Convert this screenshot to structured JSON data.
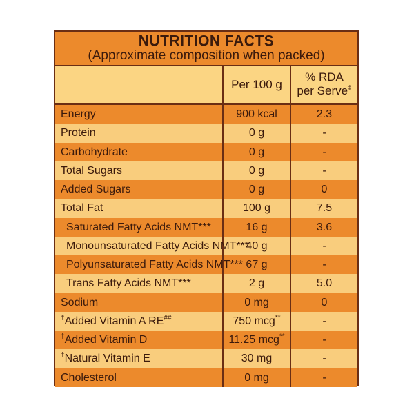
{
  "header": {
    "title": "NUTRITION FACTS",
    "subtitle": "(Approximate composition when packed)"
  },
  "columns": {
    "per": "Per 100 g",
    "rda_line1": "% RDA",
    "rda_line2": "per Serve",
    "rda_mark": "‡"
  },
  "rows": [
    {
      "pre": "",
      "name": "Energy",
      "post": "",
      "per": "900 kcal",
      "per_mark": "",
      "rda": "2.3"
    },
    {
      "pre": "",
      "name": "Protein",
      "post": "",
      "per": "0 g",
      "per_mark": "",
      "rda": "-"
    },
    {
      "pre": "",
      "name": "Carbohydrate",
      "post": "",
      "per": "0 g",
      "per_mark": "",
      "rda": "-"
    },
    {
      "pre": "",
      "name": "Total Sugars",
      "post": "",
      "per": "0 g",
      "per_mark": "",
      "rda": "-"
    },
    {
      "pre": "",
      "name": "Added Sugars",
      "post": "",
      "per": "0 g",
      "per_mark": "",
      "rda": "0"
    },
    {
      "pre": "",
      "name": "Total Fat",
      "post": "",
      "per": "100 g",
      "per_mark": "",
      "rda": "7.5"
    },
    {
      "pre": "",
      "name": "Saturated Fatty Acids NMT***",
      "post": "",
      "per": "16 g",
      "per_mark": "",
      "rda": "3.6"
    },
    {
      "pre": "",
      "name": "Monounsaturated Fatty Acids NMT***",
      "post": "",
      "per": "40 g",
      "per_mark": "",
      "rda": "-"
    },
    {
      "pre": "",
      "name": "Polyunsaturated Fatty Acids NMT***",
      "post": "",
      "per": "67 g",
      "per_mark": "",
      "rda": "-"
    },
    {
      "pre": "",
      "name": "Trans Fatty Acids NMT***",
      "post": "",
      "per": "2 g",
      "per_mark": "",
      "rda": "5.0"
    },
    {
      "pre": "",
      "name": "Sodium",
      "post": "",
      "per": "0 mg",
      "per_mark": "",
      "rda": "0"
    },
    {
      "pre": "†",
      "name": "Added Vitamin A RE",
      "post": "##",
      "per": "750 mcg",
      "per_mark": "**",
      "rda": "-"
    },
    {
      "pre": "†",
      "name": "Added Vitamin D",
      "post": "",
      "per": "11.25 mcg",
      "per_mark": "**",
      "rda": "-"
    },
    {
      "pre": "†",
      "name": "Natural Vitamin E",
      "post": "",
      "per": "30 mg",
      "per_mark": "",
      "rda": "-"
    },
    {
      "pre": "",
      "name": "Cholesterol",
      "post": "",
      "per": "0 mg",
      "per_mark": "",
      "rda": "-"
    }
  ]
}
